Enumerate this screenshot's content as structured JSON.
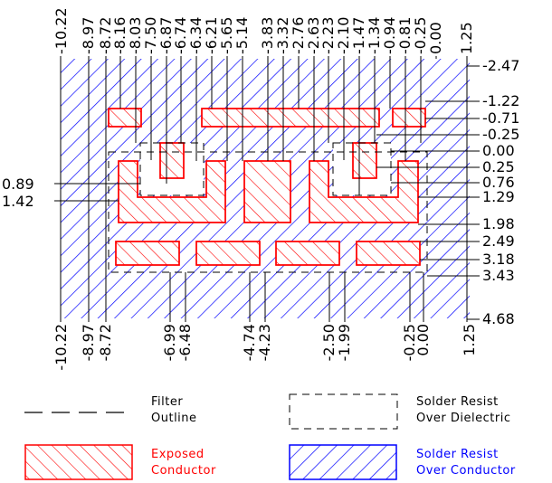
{
  "colors": {
    "exposed_conductor": "#ff0000",
    "solder_resist_over_conductor": "#0000ff",
    "outline": "#000000"
  },
  "dimensions": {
    "top": [
      "-10.22",
      "-8.97",
      "-8.72",
      "-8.16",
      "-8.03",
      "-7.50",
      "-6.87",
      "-6.74",
      "-6.34",
      "-6.21",
      "-5.65",
      "-5.14",
      "-3.83",
      "-3.32",
      "-2.76",
      "-2.63",
      "-2.23",
      "-2.10",
      "-1.47",
      "-1.34",
      "-0.94",
      "-0.81",
      "-0.25",
      "0.00",
      "1.25"
    ],
    "bottom": [
      "-10.22",
      "-8.97",
      "-8.72",
      "-6.99",
      "-6.48",
      "-4.74",
      "-4.23",
      "-2.50",
      "-1.99",
      "-0.25",
      "0.00",
      "1.25"
    ],
    "right": [
      "-2.47",
      "-1.22",
      "-0.71",
      "-0.25",
      "0.00",
      "0.25",
      "0.76",
      "1.29",
      "1.98",
      "2.49",
      "3.18",
      "3.43",
      "4.68"
    ],
    "left": [
      "0.89",
      "1.42"
    ]
  },
  "legend": {
    "filter_outline": [
      "Filter",
      "Outline"
    ],
    "solder_resist_over_dielectric": [
      "Solder Resist",
      "Over Dielectric"
    ],
    "exposed_conductor": [
      "Exposed",
      "Conductor"
    ],
    "solder_resist_over_conductor": [
      "Solder Resist",
      "Over Conductor"
    ]
  }
}
